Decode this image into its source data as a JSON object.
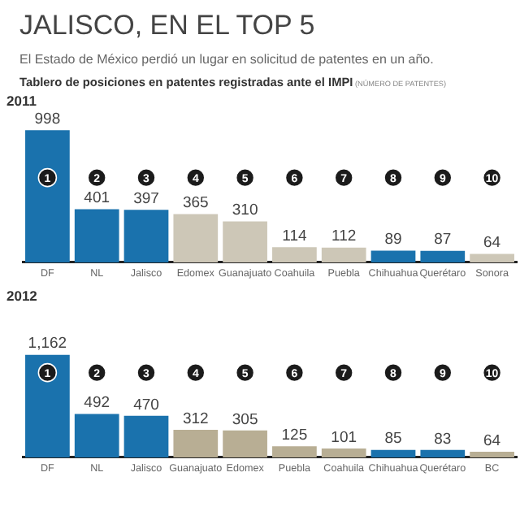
{
  "chart_data": [
    {
      "type": "other",
      "title": "JALISCO, EN EL TOP 5",
      "subtitle": "El Estado de México perdió un lugar en solicitud de patentes en un año.",
      "annotations": [
        "Tablero de posiciones en patentes registradas ante el IMPI",
        "(NÚMERO DE PATENTES)"
      ]
    },
    {
      "type": "bar",
      "title": "2011",
      "categories": [
        "DF",
        "NL",
        "Jalisco",
        "Edomex",
        "Guanajuato",
        "Coahuila",
        "Puebla",
        "Chihuahua",
        "Querétaro",
        "Sonora"
      ],
      "values": [
        998,
        401,
        397,
        365,
        310,
        114,
        112,
        89,
        87,
        64
      ],
      "colors": [
        "#1a72ad",
        "#1a72ad",
        "#1a72ad",
        "#cdc7b7",
        "#cdc7b7",
        "#cdc7b7",
        "#cdc7b7",
        "#1a72ad",
        "#1a72ad",
        "#cdc7b7"
      ],
      "value_labels": [
        "998",
        "401",
        "397",
        "365",
        "310",
        "114",
        "112",
        "89",
        "87",
        "64"
      ],
      "tick_labels": "x",
      "annotations": [
        {
          "text": "1",
          "x": "DF"
        },
        {
          "text": "2",
          "x": "NL"
        },
        {
          "text": "3",
          "x": "Jalisco"
        },
        {
          "text": "4",
          "x": "Edomex"
        },
        {
          "text": "5",
          "x": "Guanajuato"
        },
        {
          "text": "6",
          "x": "Coahuila"
        },
        {
          "text": "7",
          "x": "Puebla"
        },
        {
          "text": "8",
          "x": "Chihuahua"
        },
        {
          "text": "9",
          "x": "Querétaro"
        },
        {
          "text": "10",
          "x": "Sonora"
        }
      ]
    },
    {
      "type": "bar",
      "title": "2012",
      "categories": [
        "DF",
        "NL",
        "Jalisco",
        "Guanajuato",
        "Edomex",
        "Puebla",
        "Coahuila",
        "Chihuahua",
        "Querétaro",
        "BC"
      ],
      "values": [
        1162,
        492,
        470,
        312,
        305,
        125,
        101,
        85,
        83,
        64
      ],
      "colors": [
        "#1a72ad",
        "#1a72ad",
        "#1a72ad",
        "#b8ae94",
        "#b8ae94",
        "#b8ae94",
        "#b8ae94",
        "#1a72ad",
        "#1a72ad",
        "#b8ae94"
      ],
      "value_labels": [
        "1,162",
        "492",
        "470",
        "312",
        "305",
        "125",
        "101",
        "85",
        "83",
        "64"
      ],
      "tick_labels": "x",
      "annotations": [
        {
          "text": "1",
          "x": "DF"
        },
        {
          "text": "2",
          "x": "NL"
        },
        {
          "text": "3",
          "x": "Jalisco"
        },
        {
          "text": "4",
          "x": "Guanajuato"
        },
        {
          "text": "5",
          "x": "Edomex"
        },
        {
          "text": "6",
          "x": "Puebla"
        },
        {
          "text": "7",
          "x": "Coahuila"
        },
        {
          "text": "8",
          "x": "Chihuahua"
        },
        {
          "text": "9",
          "x": "Querétaro"
        },
        {
          "text": "10",
          "x": "BC"
        }
      ]
    }
  ]
}
